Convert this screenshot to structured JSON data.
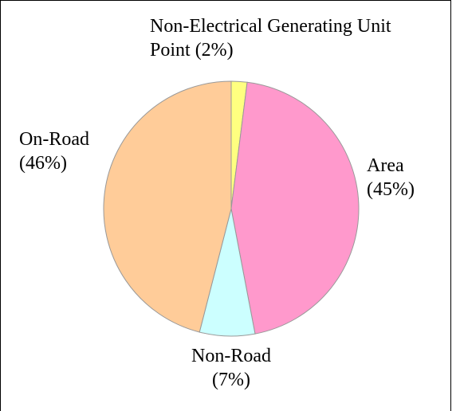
{
  "chart_data": {
    "type": "pie",
    "categories": [
      "Non-Electrical Generating Unit Point",
      "Area",
      "Non-Road",
      "On-Road"
    ],
    "values": [
      2,
      45,
      7,
      46
    ],
    "value_labels": [
      "(2%)",
      "(45%)",
      "(7%)",
      "(46%)"
    ],
    "colors": [
      "#ffff80",
      "#ff99cc",
      "#ccffff",
      "#ffcc99"
    ]
  }
}
